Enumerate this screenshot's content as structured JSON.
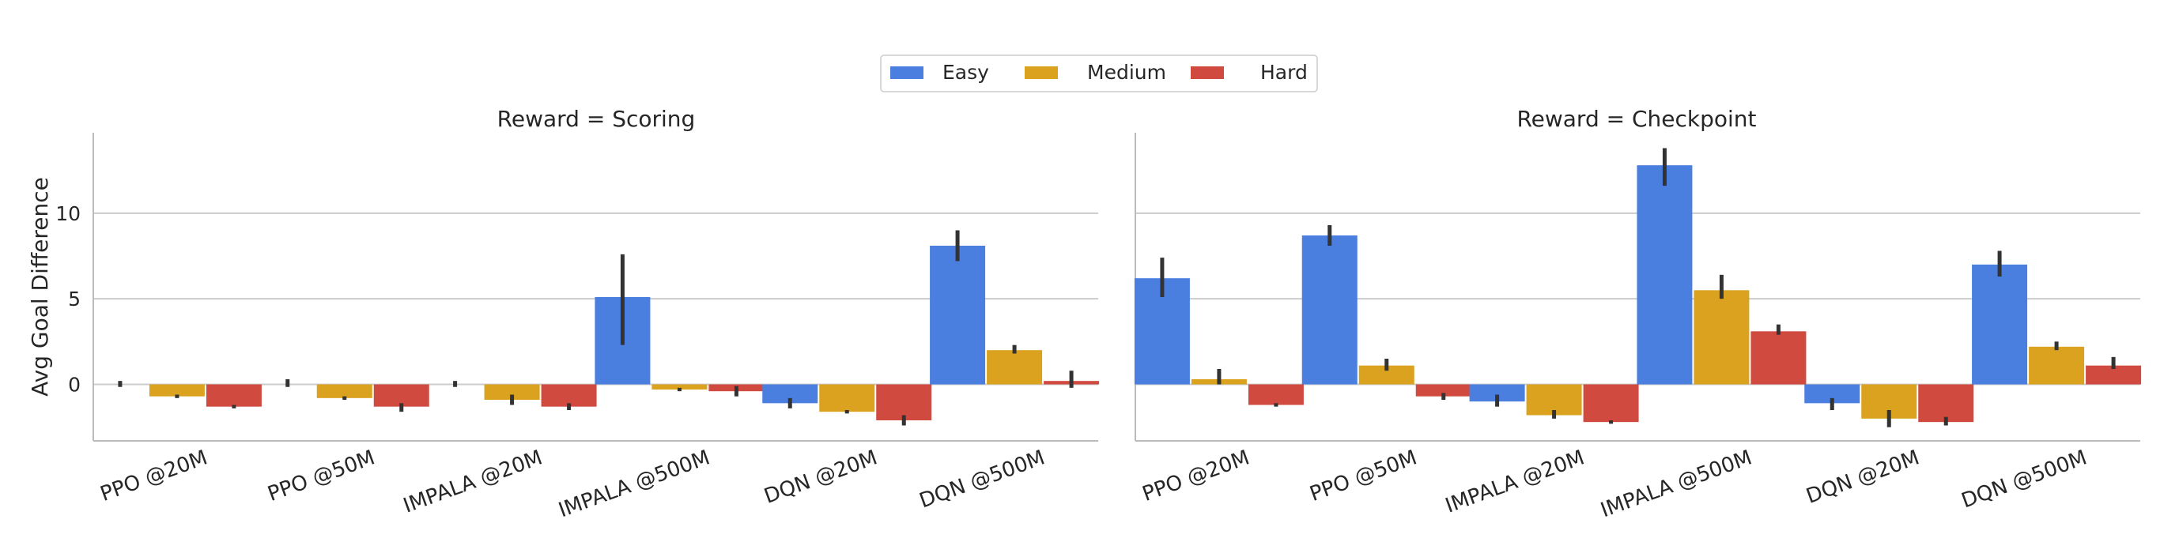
{
  "legend": {
    "items": [
      {
        "label": "Easy",
        "color": "#4a7fe0"
      },
      {
        "label": "Medium",
        "color": "#daa21f"
      },
      {
        "label": "Hard",
        "color": "#d14a40"
      }
    ]
  },
  "ylabel": "Avg Goal Difference",
  "chart_data": [
    {
      "type": "bar",
      "title": "Reward = Scoring",
      "ylabel": "Avg Goal Difference",
      "ylim": [
        -3.3,
        14.7
      ],
      "yticks": [
        0,
        5,
        10
      ],
      "grid": "horizontal",
      "legend_position": "top-center",
      "categories": [
        "PPO @20M",
        "PPO @50M",
        "IMPALA @20M",
        "IMPALA @500M",
        "DQN @20M",
        "DQN @500M"
      ],
      "series": [
        {
          "name": "Easy",
          "values": [
            0.0,
            0.0,
            0.0,
            5.1,
            -1.1,
            8.1
          ],
          "err_low": [
            -0.15,
            -0.15,
            -0.15,
            2.3,
            -1.4,
            7.2
          ],
          "err_high": [
            0.2,
            0.3,
            0.2,
            7.6,
            -0.8,
            9.0
          ]
        },
        {
          "name": "Medium",
          "values": [
            -0.7,
            -0.8,
            -0.9,
            -0.3,
            -1.6,
            2.0
          ],
          "err_low": [
            -0.8,
            -0.9,
            -1.2,
            -0.4,
            -1.7,
            1.8
          ],
          "err_high": [
            -0.6,
            -0.7,
            -0.6,
            -0.2,
            -1.5,
            2.3
          ]
        },
        {
          "name": "Hard",
          "values": [
            -1.3,
            -1.3,
            -1.3,
            -0.4,
            -2.1,
            0.2
          ],
          "err_low": [
            -1.4,
            -1.6,
            -1.5,
            -0.7,
            -2.4,
            -0.2
          ],
          "err_high": [
            -1.2,
            -1.1,
            -1.1,
            -0.1,
            -1.8,
            0.8
          ]
        }
      ]
    },
    {
      "type": "bar",
      "title": "Reward = Checkpoint",
      "ylim": [
        -3.3,
        14.7
      ],
      "yticks": [
        0,
        5,
        10
      ],
      "grid": "horizontal",
      "categories": [
        "PPO @20M",
        "PPO @50M",
        "IMPALA @20M",
        "IMPALA @500M",
        "DQN @20M",
        "DQN @500M"
      ],
      "series": [
        {
          "name": "Easy",
          "values": [
            6.2,
            8.7,
            -1.0,
            12.8,
            -1.1,
            7.0
          ],
          "err_low": [
            5.1,
            8.1,
            -1.3,
            11.6,
            -1.5,
            6.3
          ],
          "err_high": [
            7.4,
            9.3,
            -0.6,
            13.8,
            -0.8,
            7.8
          ]
        },
        {
          "name": "Medium",
          "values": [
            0.3,
            1.1,
            -1.8,
            5.5,
            -2.0,
            2.2
          ],
          "err_low": [
            0.0,
            0.8,
            -2.0,
            5.0,
            -2.5,
            2.0
          ],
          "err_high": [
            0.9,
            1.5,
            -1.5,
            6.4,
            -1.5,
            2.5
          ]
        },
        {
          "name": "Hard",
          "values": [
            -1.2,
            -0.7,
            -2.2,
            3.1,
            -2.2,
            1.1
          ],
          "err_low": [
            -1.3,
            -0.9,
            -2.3,
            2.9,
            -2.4,
            0.9
          ],
          "err_high": [
            -1.1,
            -0.5,
            -2.1,
            3.5,
            -1.9,
            1.6
          ]
        }
      ]
    }
  ]
}
